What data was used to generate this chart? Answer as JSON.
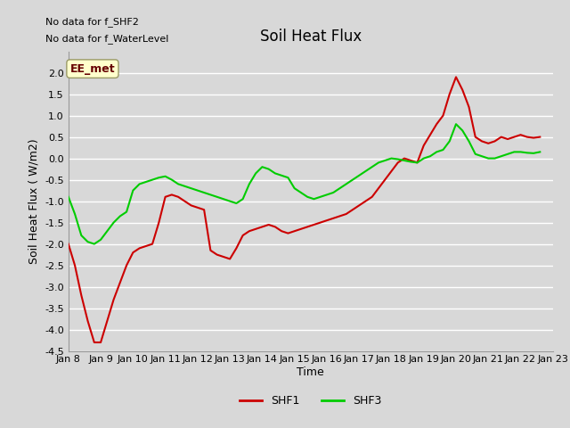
{
  "title": "Soil Heat Flux",
  "ylabel": "Soil Heat Flux ( W/m2)",
  "xlabel": "Time",
  "ylim": [
    -4.5,
    2.5
  ],
  "yticks": [
    -4.5,
    -4.0,
    -3.5,
    -3.0,
    -2.5,
    -2.0,
    -1.5,
    -1.0,
    -0.5,
    0.0,
    0.5,
    1.0,
    1.5,
    2.0
  ],
  "no_data_text1": "No data for f_SHF2",
  "no_data_text2": "No data for f_WaterLevel",
  "ee_met_label": "EE_met",
  "legend_labels": [
    "SHF1",
    "SHF3"
  ],
  "legend_colors": [
    "#cc0000",
    "#00cc00"
  ],
  "bg_color": "#e8e8e8",
  "plot_bg_color": "#d8d8d8",
  "grid_color": "#ffffff",
  "shf1_x": [
    8,
    8.2,
    8.4,
    8.6,
    8.8,
    9.0,
    9.2,
    9.4,
    9.6,
    9.8,
    10.0,
    10.2,
    10.4,
    10.6,
    10.8,
    11.0,
    11.2,
    11.4,
    11.6,
    11.8,
    12.0,
    12.2,
    12.4,
    12.6,
    12.8,
    13.0,
    13.2,
    13.4,
    13.6,
    13.8,
    14.0,
    14.2,
    14.4,
    14.6,
    14.8,
    15.0,
    15.2,
    15.4,
    15.6,
    15.8,
    16.0,
    16.2,
    16.4,
    16.6,
    16.8,
    17.0,
    17.2,
    17.4,
    17.6,
    17.8,
    18.0,
    18.2,
    18.4,
    18.6,
    18.8,
    19.0,
    19.2,
    19.4,
    19.6,
    19.8,
    20.0,
    20.2,
    20.4,
    20.6,
    20.8,
    21.0,
    21.2,
    21.4,
    21.6,
    21.8,
    22.0,
    22.2,
    22.4,
    22.6
  ],
  "shf1_y": [
    -2.0,
    -2.5,
    -3.2,
    -3.8,
    -4.3,
    -4.3,
    -3.8,
    -3.3,
    -2.9,
    -2.5,
    -2.2,
    -2.1,
    -2.05,
    -2.0,
    -1.5,
    -0.9,
    -0.85,
    -0.9,
    -1.0,
    -1.1,
    -1.15,
    -1.2,
    -2.15,
    -2.25,
    -2.3,
    -2.35,
    -2.1,
    -1.8,
    -1.7,
    -1.65,
    -1.6,
    -1.55,
    -1.6,
    -1.7,
    -1.75,
    -1.7,
    -1.65,
    -1.6,
    -1.55,
    -1.5,
    -1.45,
    -1.4,
    -1.35,
    -1.3,
    -1.2,
    -1.1,
    -1.0,
    -0.9,
    -0.7,
    -0.5,
    -0.3,
    -0.1,
    0.0,
    -0.05,
    -0.1,
    0.3,
    0.55,
    0.8,
    1.0,
    1.5,
    1.9,
    1.6,
    1.2,
    0.5,
    0.4,
    0.35,
    0.4,
    0.5,
    0.45,
    0.5,
    0.55,
    0.5,
    0.48,
    0.5
  ],
  "shf3_x": [
    8.0,
    8.2,
    8.4,
    8.6,
    8.8,
    9.0,
    9.2,
    9.4,
    9.6,
    9.8,
    10.0,
    10.2,
    10.4,
    10.6,
    10.8,
    11.0,
    11.2,
    11.4,
    11.6,
    11.8,
    12.0,
    12.2,
    12.4,
    12.6,
    12.8,
    13.0,
    13.2,
    13.4,
    13.6,
    13.8,
    14.0,
    14.2,
    14.4,
    14.6,
    14.8,
    15.0,
    15.2,
    15.4,
    15.6,
    15.8,
    16.0,
    16.2,
    16.4,
    16.6,
    16.8,
    17.0,
    17.2,
    17.4,
    17.6,
    17.8,
    18.0,
    18.2,
    18.4,
    18.6,
    18.8,
    19.0,
    19.2,
    19.4,
    19.6,
    19.8,
    20.0,
    20.2,
    20.4,
    20.6,
    20.8,
    21.0,
    21.2,
    21.4,
    21.6,
    21.8,
    22.0,
    22.2,
    22.4,
    22.6
  ],
  "shf3_y": [
    -0.9,
    -1.3,
    -1.8,
    -1.95,
    -2.0,
    -1.9,
    -1.7,
    -1.5,
    -1.35,
    -1.25,
    -0.75,
    -0.6,
    -0.55,
    -0.5,
    -0.45,
    -0.42,
    -0.5,
    -0.6,
    -0.65,
    -0.7,
    -0.75,
    -0.8,
    -0.85,
    -0.9,
    -0.95,
    -1.0,
    -1.05,
    -0.95,
    -0.6,
    -0.35,
    -0.2,
    -0.25,
    -0.35,
    -0.4,
    -0.45,
    -0.7,
    -0.8,
    -0.9,
    -0.95,
    -0.9,
    -0.85,
    -0.8,
    -0.7,
    -0.6,
    -0.5,
    -0.4,
    -0.3,
    -0.2,
    -0.1,
    -0.05,
    0.0,
    -0.02,
    -0.05,
    -0.08,
    -0.1,
    0.0,
    0.05,
    0.15,
    0.2,
    0.4,
    0.8,
    0.65,
    0.4,
    0.1,
    0.05,
    0.0,
    0.0,
    0.05,
    0.1,
    0.15,
    0.15,
    0.13,
    0.12,
    0.15
  ],
  "xtick_positions": [
    8,
    9,
    10,
    11,
    12,
    13,
    14,
    15,
    16,
    17,
    18,
    19,
    20,
    21,
    22,
    23
  ],
  "xtick_labels": [
    "Jan 8",
    "Jan 9",
    "Jan 10",
    "Jan 11",
    "Jan 12",
    "Jan 13",
    "Jan 14",
    "Jan 15",
    "Jan 16",
    "Jan 17",
    "Jan 18",
    "Jan 19",
    "Jan 20",
    "Jan 21",
    "Jan 22",
    "Jan 23"
  ]
}
